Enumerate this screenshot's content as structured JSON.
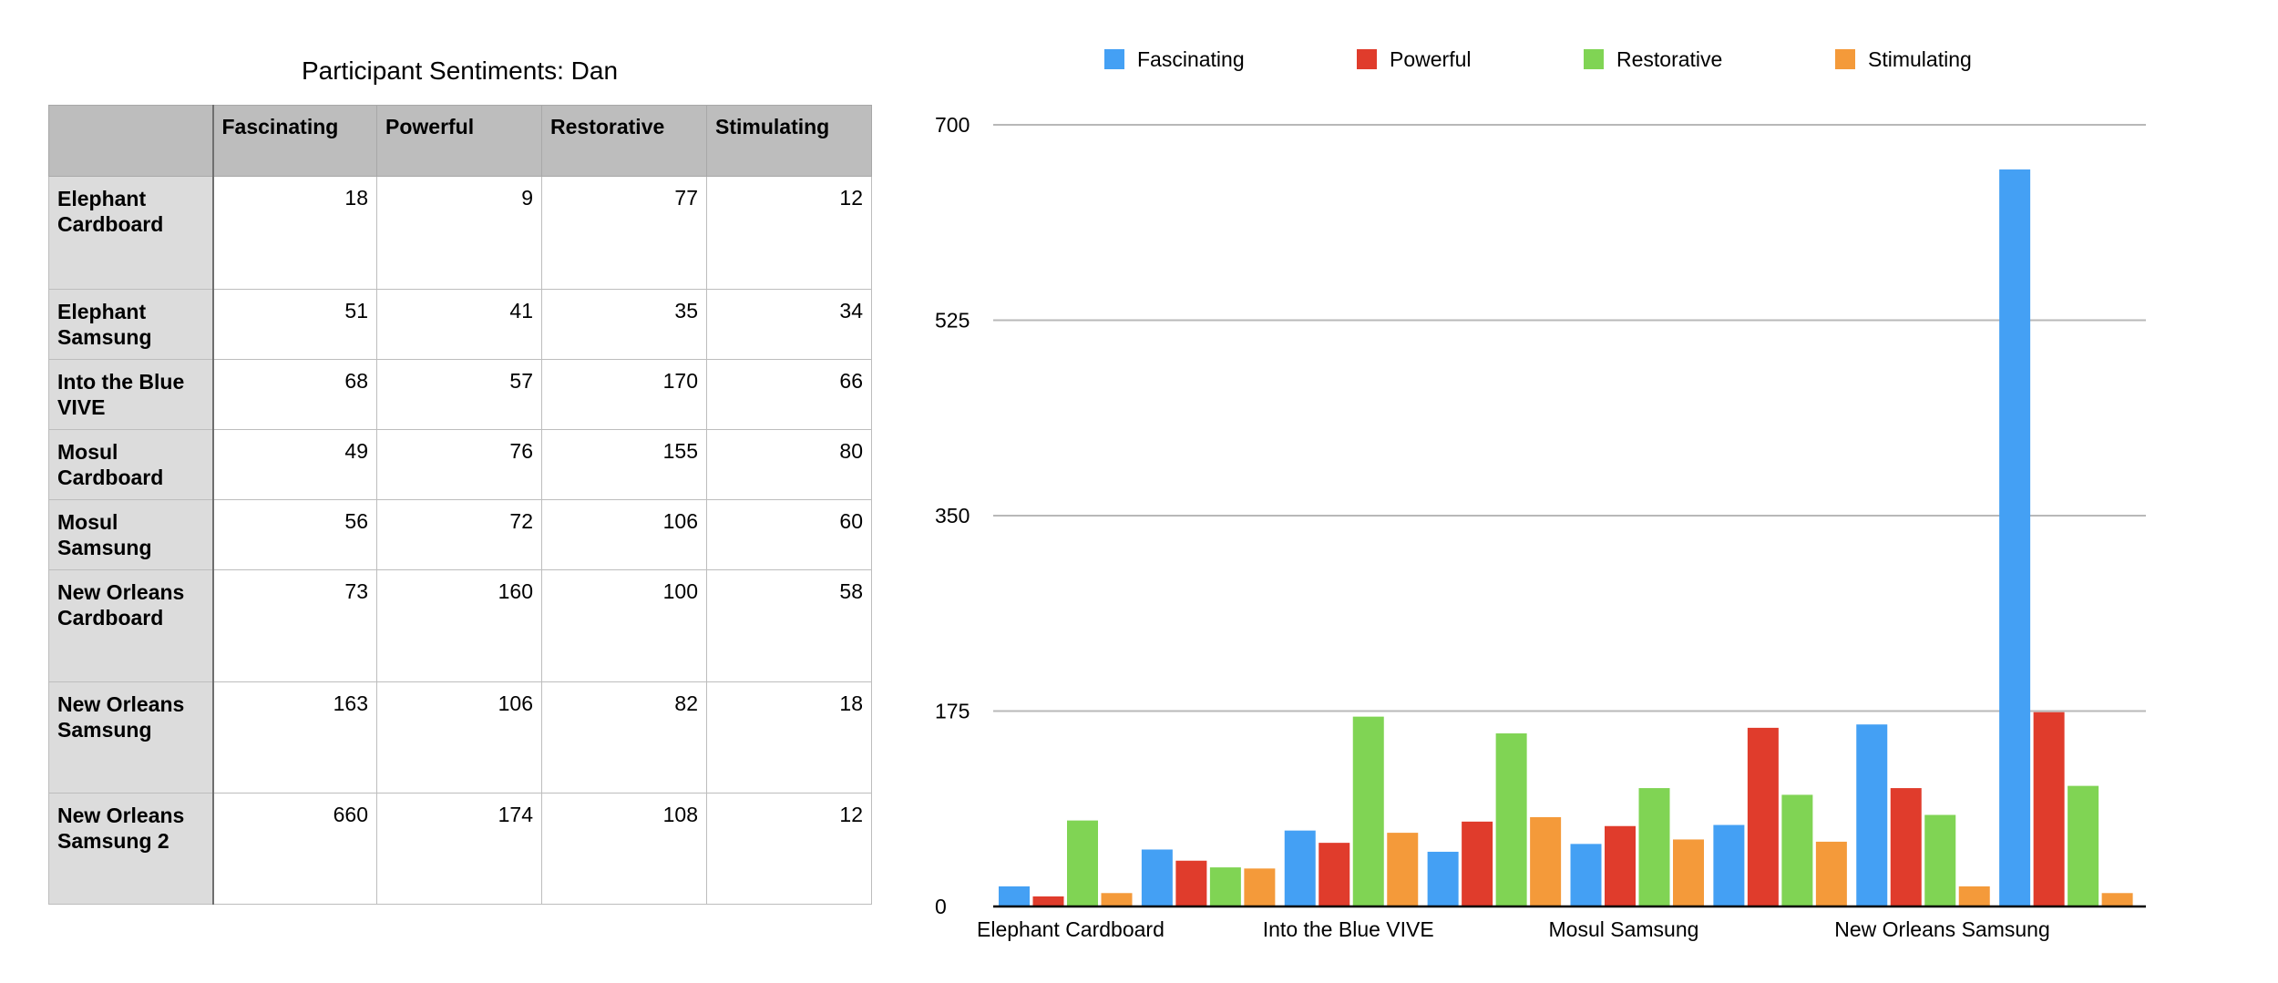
{
  "table": {
    "title": "Participant Sentiments:  Dan",
    "columns": [
      "",
      "Fascinating",
      "Powerful",
      "Restorative",
      "Stimulating"
    ],
    "rows": [
      {
        "label": "Elephant Cardboard",
        "values": [
          18,
          9,
          77,
          12
        ]
      },
      {
        "label": "Elephant Samsung",
        "values": [
          51,
          41,
          35,
          34
        ]
      },
      {
        "label": "Into the Blue VIVE",
        "values": [
          68,
          57,
          170,
          66
        ]
      },
      {
        "label": "Mosul Cardboard",
        "values": [
          49,
          76,
          155,
          80
        ]
      },
      {
        "label": "Mosul Samsung",
        "values": [
          56,
          72,
          106,
          60
        ]
      },
      {
        "label": "New Orleans Cardboard",
        "values": [
          73,
          160,
          100,
          58
        ]
      },
      {
        "label": "New Orleans Samsung",
        "values": [
          163,
          106,
          82,
          18
        ]
      },
      {
        "label": "New Orleans Samsung 2",
        "values": [
          660,
          174,
          108,
          12
        ]
      }
    ]
  },
  "chart_data": {
    "type": "bar",
    "title": "",
    "xlabel": "",
    "ylabel": "",
    "ylim": [
      0,
      700
    ],
    "yticks": [
      0,
      175,
      350,
      525,
      700
    ],
    "grid": true,
    "legend": "top",
    "categories": [
      "Elephant Cardboard",
      "Elephant Samsung",
      "Into the Blue VIVE",
      "Mosul Cardboard",
      "Mosul Samsung",
      "New Orleans Cardboard",
      "New Orleans Samsung",
      "New Orleans Samsung 2"
    ],
    "visible_category_labels": [
      "Elephant Cardboard",
      "",
      "Into the Blue VIVE",
      "",
      "Mosul Samsung",
      "",
      "New Orleans Samsung",
      ""
    ],
    "series": [
      {
        "name": "Fascinating",
        "color": "#44a0f4",
        "values": [
          18,
          51,
          68,
          49,
          56,
          73,
          163,
          660
        ]
      },
      {
        "name": "Powerful",
        "color": "#e03c2c",
        "values": [
          9,
          41,
          57,
          76,
          72,
          160,
          106,
          174
        ]
      },
      {
        "name": "Restorative",
        "color": "#80d454",
        "values": [
          77,
          35,
          170,
          155,
          106,
          100,
          82,
          108
        ]
      },
      {
        "name": "Stimulating",
        "color": "#f49a3a",
        "values": [
          12,
          34,
          66,
          80,
          60,
          58,
          18,
          12
        ]
      }
    ]
  }
}
